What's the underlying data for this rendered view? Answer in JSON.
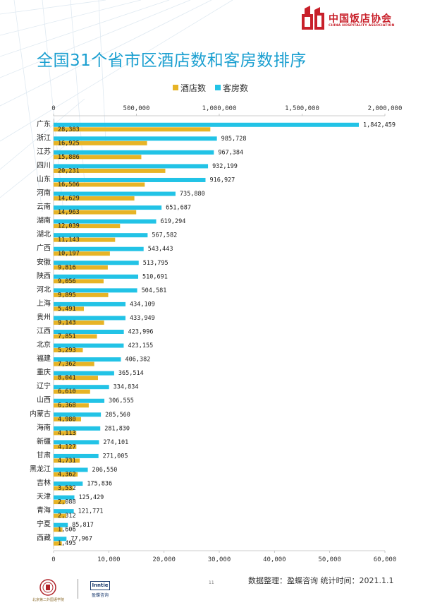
{
  "header": {
    "association_name": "中国饭店协会",
    "association_name_en": "CHINA HOSPITALITY ASSOCIATION"
  },
  "title": "全国31个省市区酒店数和客房数排序",
  "footer": {
    "note": "数据整理：盈蝶咨询  统计时间：2021.1.1",
    "page_number": "11",
    "university_name": "北京第二外国语学院",
    "brand_name": "Inntie",
    "brand_name_cn": "盈蝶咨询"
  },
  "colors": {
    "hotels": "#e7b426",
    "rooms": "#22c3e6",
    "title": "#1a9fd0",
    "association": "#c8202a"
  },
  "chart_data": {
    "type": "bar",
    "orientation": "horizontal",
    "legend_position": "top",
    "grid": false,
    "categories": [
      "广东",
      "浙江",
      "江苏",
      "四川",
      "山东",
      "河南",
      "云南",
      "湖南",
      "湖北",
      "广西",
      "安徽",
      "陕西",
      "河北",
      "上海",
      "贵州",
      "江西",
      "北京",
      "福建",
      "重庆",
      "辽宁",
      "山西",
      "内蒙古",
      "海南",
      "新疆",
      "甘肃",
      "黑龙江",
      "吉林",
      "天津",
      "青海",
      "宁夏",
      "西藏"
    ],
    "series": [
      {
        "name": "客房数",
        "axis": "top",
        "values": [
          1842459,
          985728,
          967384,
          932199,
          916927,
          735880,
          651687,
          619294,
          567582,
          543443,
          513795,
          510691,
          504581,
          434109,
          433949,
          423996,
          423155,
          406382,
          365514,
          334834,
          306555,
          285560,
          281830,
          274101,
          271005,
          206550,
          175836,
          125429,
          121771,
          85817,
          77967
        ],
        "labels": [
          "1,842,459",
          "985,728",
          "967,384",
          "932,199",
          "916,927",
          "735,880",
          "651,687",
          "619,294",
          "567,582",
          "543,443",
          "513,795",
          "510,691",
          "504,581",
          "434,109",
          "433,949",
          "423,996",
          "423,155",
          "406,382",
          "365,514",
          "334,834",
          "306,555",
          "285,560",
          "281,830",
          "274,101",
          "271,005",
          "206,550",
          "175,836",
          "125,429",
          "121,771",
          "85,817",
          "77,967"
        ]
      },
      {
        "name": "酒店数",
        "axis": "bottom",
        "values": [
          28383,
          16925,
          15886,
          20231,
          16506,
          14629,
          14963,
          12039,
          11143,
          10197,
          9816,
          9056,
          9895,
          5491,
          9143,
          7851,
          5293,
          7362,
          8041,
          6610,
          6368,
          4980,
          4113,
          4127,
          4731,
          4362,
          3532,
          2088,
          2312,
          1606,
          1495
        ],
        "labels": [
          "28,383",
          "16,925",
          "15,886",
          "20,231",
          "16,506",
          "14,629",
          "14,963",
          "12,039",
          "11,143",
          "10,197",
          "9,816",
          "9,056",
          "9,895",
          "5,491",
          "9,143",
          "7,851",
          "5,293",
          "7,362",
          "8,041",
          "6,610",
          "6,368",
          "4,980",
          "4,113",
          "4,127",
          "4,731",
          "4,362",
          "3,532",
          "2,088",
          "2,312",
          "1,606",
          "1,495"
        ]
      }
    ],
    "top_axis": {
      "range": [
        0,
        2000000
      ],
      "ticks": [
        0,
        500000,
        1000000,
        1500000,
        2000000
      ],
      "tick_labels": [
        "0",
        "500,000",
        "1,000,000",
        "1,500,000",
        "2,000,000"
      ]
    },
    "bottom_axis": {
      "range": [
        0,
        60000
      ],
      "ticks": [
        0,
        10000,
        20000,
        30000,
        40000,
        50000,
        60000
      ],
      "tick_labels": [
        "0",
        "10,000",
        "20,000",
        "30,000",
        "40,000",
        "50,000",
        "60,000"
      ]
    }
  }
}
